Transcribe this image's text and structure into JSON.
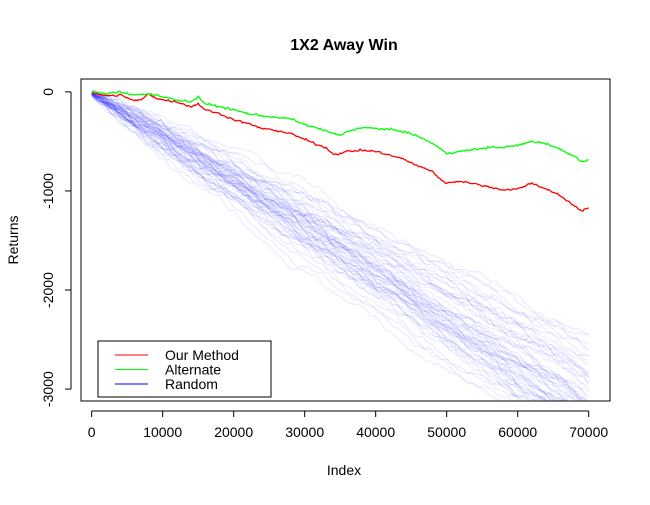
{
  "chart_data": {
    "type": "line",
    "title": "1X2 Away Win",
    "xlabel": "Index",
    "ylabel": "Returns",
    "xlim": [
      -1500,
      73000
    ],
    "ylim": [
      -3120,
      130
    ],
    "x_ticks": [
      0,
      10000,
      20000,
      30000,
      40000,
      50000,
      60000,
      70000
    ],
    "x_tick_labels": [
      "0",
      "10000",
      "20000",
      "30000",
      "40000",
      "50000",
      "60000",
      "70000"
    ],
    "y_ticks": [
      0,
      -1000,
      -2000,
      -3000
    ],
    "y_tick_labels": [
      "0",
      "-1000",
      "-2000",
      "-3000"
    ],
    "legend": {
      "placement": "bottom-left",
      "entries": [
        {
          "label": "Our Method",
          "color": "#ff0000"
        },
        {
          "label": "Alternate",
          "color": "#00ff00"
        },
        {
          "label": "Random",
          "color": "#0000ff"
        }
      ]
    },
    "series": [
      {
        "name": "Our Method",
        "color": "#ff0000",
        "x": [
          0,
          1000,
          3000,
          4000,
          5000,
          6000,
          7000,
          8000,
          9000,
          10000,
          12000,
          14000,
          15000,
          16000,
          18000,
          20000,
          22000,
          24000,
          26000,
          28000,
          30000,
          32000,
          33000,
          34000,
          35000,
          36000,
          38000,
          40000,
          42000,
          44000,
          46000,
          48000,
          49000,
          50000,
          52000,
          54000,
          56000,
          58000,
          60000,
          61000,
          62000,
          64000,
          66000,
          68000,
          69000,
          70000
        ],
        "y": [
          0,
          -30,
          -40,
          -30,
          -60,
          -90,
          -80,
          -20,
          -60,
          -80,
          -100,
          -150,
          -120,
          -180,
          -220,
          -280,
          -320,
          -370,
          -390,
          -420,
          -480,
          -540,
          -560,
          -630,
          -620,
          -600,
          -590,
          -600,
          -640,
          -680,
          -750,
          -800,
          -880,
          -920,
          -900,
          -930,
          -960,
          -990,
          -980,
          -950,
          -920,
          -980,
          -1050,
          -1150,
          -1200,
          -1170
        ]
      },
      {
        "name": "Alternate",
        "color": "#00ff00",
        "x": [
          0,
          2000,
          4000,
          6000,
          8000,
          10000,
          12000,
          14000,
          15000,
          16000,
          18000,
          20000,
          22000,
          24000,
          26000,
          28000,
          30000,
          32000,
          34000,
          35000,
          36000,
          38000,
          40000,
          42000,
          44000,
          46000,
          48000,
          50000,
          52000,
          54000,
          56000,
          58000,
          60000,
          62000,
          64000,
          66000,
          68000,
          69000,
          70000
        ],
        "y": [
          0,
          -20,
          0,
          -30,
          -20,
          -50,
          -80,
          -100,
          -50,
          -120,
          -150,
          -180,
          -220,
          -240,
          -260,
          -270,
          -330,
          -370,
          -420,
          -440,
          -400,
          -360,
          -370,
          -380,
          -400,
          -450,
          -520,
          -620,
          -600,
          -580,
          -560,
          -560,
          -540,
          -500,
          -520,
          -580,
          -650,
          -700,
          -690
        ]
      }
    ]
  }
}
